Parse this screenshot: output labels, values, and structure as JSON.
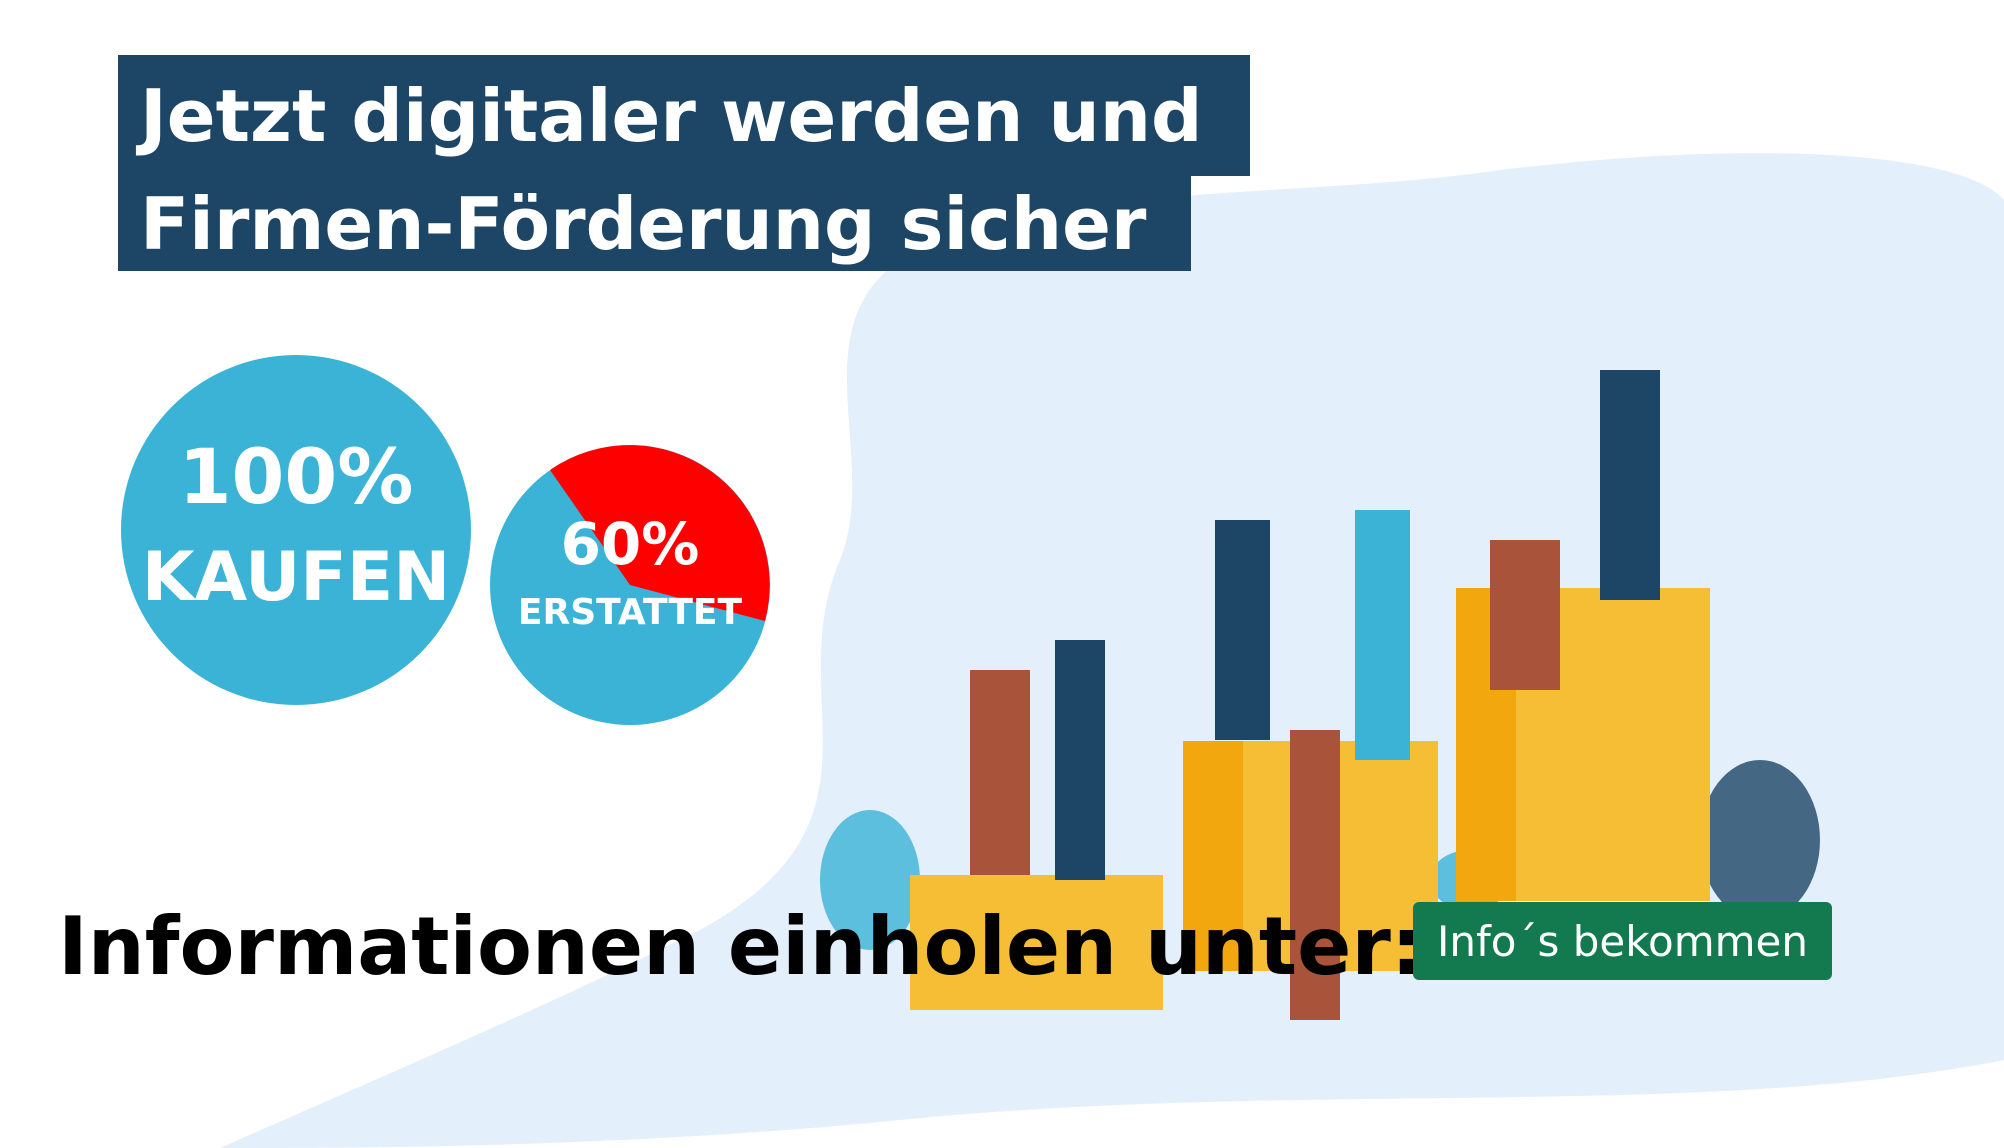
{
  "header": {
    "line1": "Jetzt digitaler werden und",
    "line2": "Firmen-Förderung sicher"
  },
  "badge_buy": {
    "value": "100%",
    "label": "KAUFEN"
  },
  "badge_refund": {
    "value": "60%",
    "label": "ERSTATTET"
  },
  "info_text": "Informationen einholen unter:",
  "button": "Info´s bekommen"
}
